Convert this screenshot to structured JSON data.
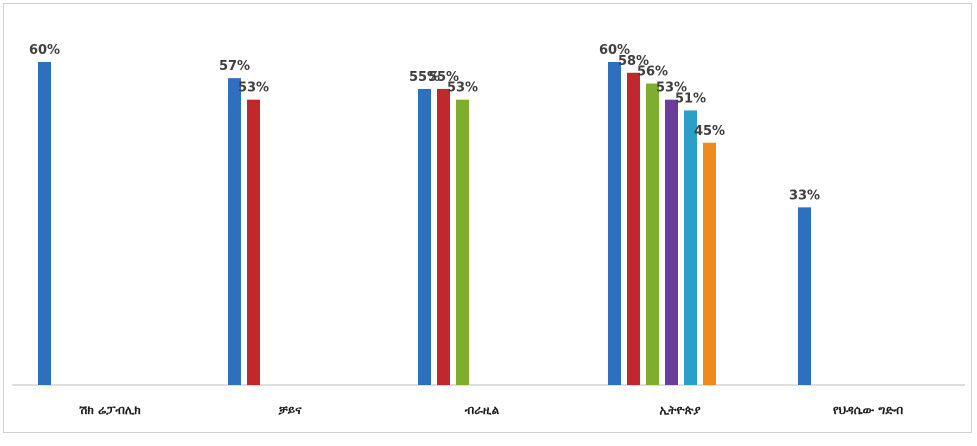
{
  "chart_data": {
    "type": "bar",
    "categories": [
      "ሽክ ሬፓብሊክ",
      "ቻይና",
      "ብራዚል",
      "ኢትዮጵያ",
      "የህዳሴው ግድብ"
    ],
    "groups": [
      {
        "category": "ሽክ ሬፓብሊክ",
        "values": [
          60
        ],
        "labels": [
          "60%"
        ],
        "colors": [
          "#2e6fbe"
        ]
      },
      {
        "category": "ቻይና",
        "values": [
          57,
          53
        ],
        "labels": [
          "57%",
          "53%"
        ],
        "colors": [
          "#2e6fbe",
          "#c0282d"
        ]
      },
      {
        "category": "ብራዚል",
        "values": [
          55,
          55,
          53
        ],
        "labels": [
          "55%",
          "55%",
          "53%"
        ],
        "colors": [
          "#2e6fbe",
          "#c0282d",
          "#7fae2e"
        ]
      },
      {
        "category": "ኢትዮጵያ",
        "values": [
          60,
          58,
          56,
          53,
          51,
          45
        ],
        "labels": [
          "60%",
          "58%",
          "56%",
          "53%",
          "51%",
          "45%"
        ],
        "colors": [
          "#2e6fbe",
          "#c0282d",
          "#7fae2e",
          "#6a3d9a",
          "#2aa0c8",
          "#f08a1c"
        ]
      },
      {
        "category": "የህዳሴው ግድብ",
        "values": [
          33
        ],
        "labels": [
          "33%"
        ],
        "colors": [
          "#2e6fbe"
        ]
      }
    ],
    "ylim": [
      0,
      60
    ],
    "grid": false,
    "legend": "none",
    "title": "",
    "xlabel": "",
    "ylabel": ""
  }
}
